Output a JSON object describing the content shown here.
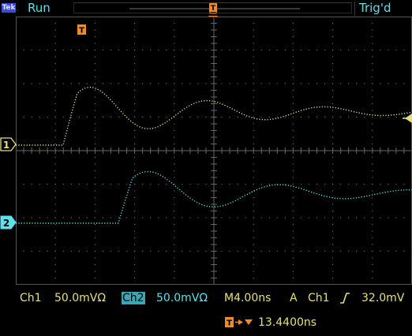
{
  "top_bar": {
    "logo_text": "Tek",
    "acquisition_state": "Run",
    "trigger_status": "Trig'd"
  },
  "channel_markers": {
    "ch1": "1",
    "ch2": "2",
    "trigger_pos": "T",
    "trigger_mark": "T"
  },
  "readouts": {
    "ch1_label": "Ch1",
    "ch1_scale": "50.0mVΩ",
    "ch2_label": "Ch2",
    "ch2_scale": "50.0mVΩ",
    "timebase": "M4.00ns",
    "trigger_mode": "A",
    "trigger_source": "Ch1",
    "trigger_level": "32.0mV",
    "trigger_delay": "13.4400ns"
  },
  "colors": {
    "ch1": "#e6e07a",
    "ch2": "#5fe0ea",
    "trigger": "#f08a2a",
    "grid": "#6b6b6b"
  }
}
